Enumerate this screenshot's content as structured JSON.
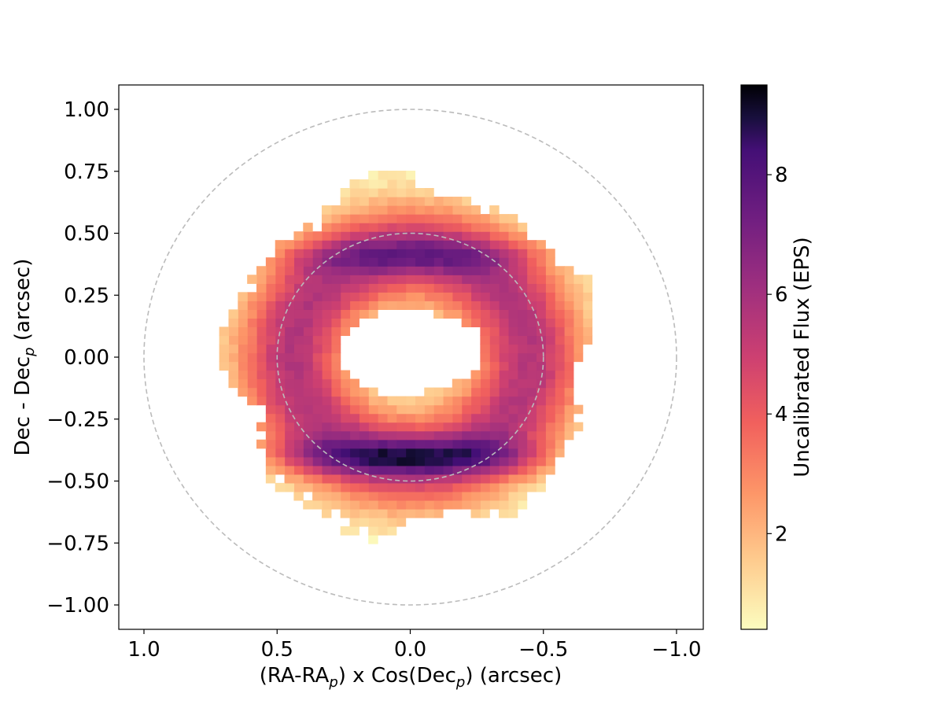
{
  "chart_data": {
    "type": "heatmap",
    "title": "",
    "xlabel": {
      "pre": "(RA-RA",
      "sub": "p",
      "mid": ") x Cos(Dec",
      "sub2": "p",
      "post": ") (arcsec)"
    },
    "ylabel": {
      "pre": "Dec - Dec",
      "sub": "p",
      "post": " (arcsec)"
    },
    "xlim": [
      1.1,
      -1.1
    ],
    "ylim": [
      -1.1,
      1.1
    ],
    "x_ticks": [
      1.0,
      0.5,
      0.0,
      -0.5,
      -1.0
    ],
    "x_tick_labels": [
      "1.0",
      "0.5",
      "0.0",
      "−0.5",
      "−1.0"
    ],
    "y_ticks": [
      1.0,
      0.75,
      0.5,
      0.25,
      0.0,
      -0.25,
      -0.5,
      -0.75,
      -1.0
    ],
    "y_tick_labels": [
      "1.00",
      "0.75",
      "0.50",
      "0.25",
      "0.00",
      "−0.25",
      "−0.50",
      "−0.75",
      "−1.00"
    ],
    "colorbar": {
      "label": "Uncalibrated Flux (EPS)",
      "range": [
        0.4,
        9.5
      ],
      "ticks": [
        2,
        4,
        6,
        8
      ],
      "tick_labels": [
        "2",
        "4",
        "6",
        "8"
      ],
      "colormap": "magma_r"
    },
    "reference_circles": [
      {
        "center": [
          0.0,
          0.0
        ],
        "radius": 1.0,
        "style": "dashed",
        "color": "#bbbbbb"
      },
      {
        "center": [
          0.0,
          0.0
        ],
        "radius": 0.5,
        "style": "dashed",
        "color": "#bbbbbb"
      }
    ],
    "heatmap": {
      "pixel_size_arcsec": 0.035,
      "features": [
        {
          "name": "southern arc",
          "center": [
            0.0,
            -0.4
          ],
          "peak_flux": 9.3
        },
        {
          "name": "northern arc",
          "center": [
            0.0,
            0.41
          ],
          "peak_flux": 7.5
        },
        {
          "name": "central hole",
          "center": [
            0.0,
            0.0
          ],
          "flux": "below threshold"
        },
        {
          "name": "outer halo",
          "extent_x": [
            0.68,
            -0.7
          ],
          "extent_y": [
            -0.72,
            0.7
          ],
          "min_flux": 0.4
        }
      ]
    }
  }
}
